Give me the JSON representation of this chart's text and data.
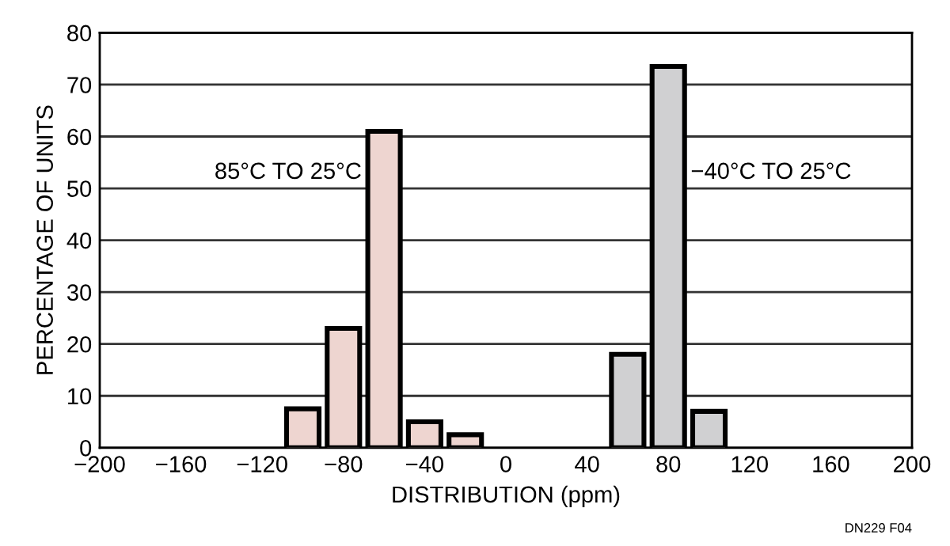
{
  "chart_data": {
    "type": "bar",
    "xlabel": "DISTRIBUTION (ppm)",
    "ylabel": "PERCENTAGE OF UNITS",
    "series": [
      {
        "name": "85°C TO 25°C",
        "color": "#eed5d0",
        "x": [
          -100,
          -80,
          -60,
          -40,
          -20
        ],
        "values": [
          7.5,
          23,
          61,
          5,
          2.5
        ]
      },
      {
        "name": "−40°C TO 25°C",
        "color": "#d0d0d2",
        "x": [
          60,
          80,
          100
        ],
        "values": [
          18,
          73.5,
          7
        ]
      }
    ],
    "xlim": [
      -200,
      200
    ],
    "xticks": [
      {
        "value": -200,
        "label": "−200"
      },
      {
        "value": -160,
        "label": "−160"
      },
      {
        "value": -120,
        "label": "−120"
      },
      {
        "value": -80,
        "label": "−80"
      },
      {
        "value": -40,
        "label": "−40"
      },
      0,
      40,
      80,
      120,
      160,
      200
    ],
    "ylim": [
      0,
      80
    ],
    "yticks": [
      0,
      10,
      20,
      30,
      40,
      50,
      60,
      70,
      80
    ],
    "grid": "y",
    "annotations": [
      "DN229 F04"
    ]
  }
}
